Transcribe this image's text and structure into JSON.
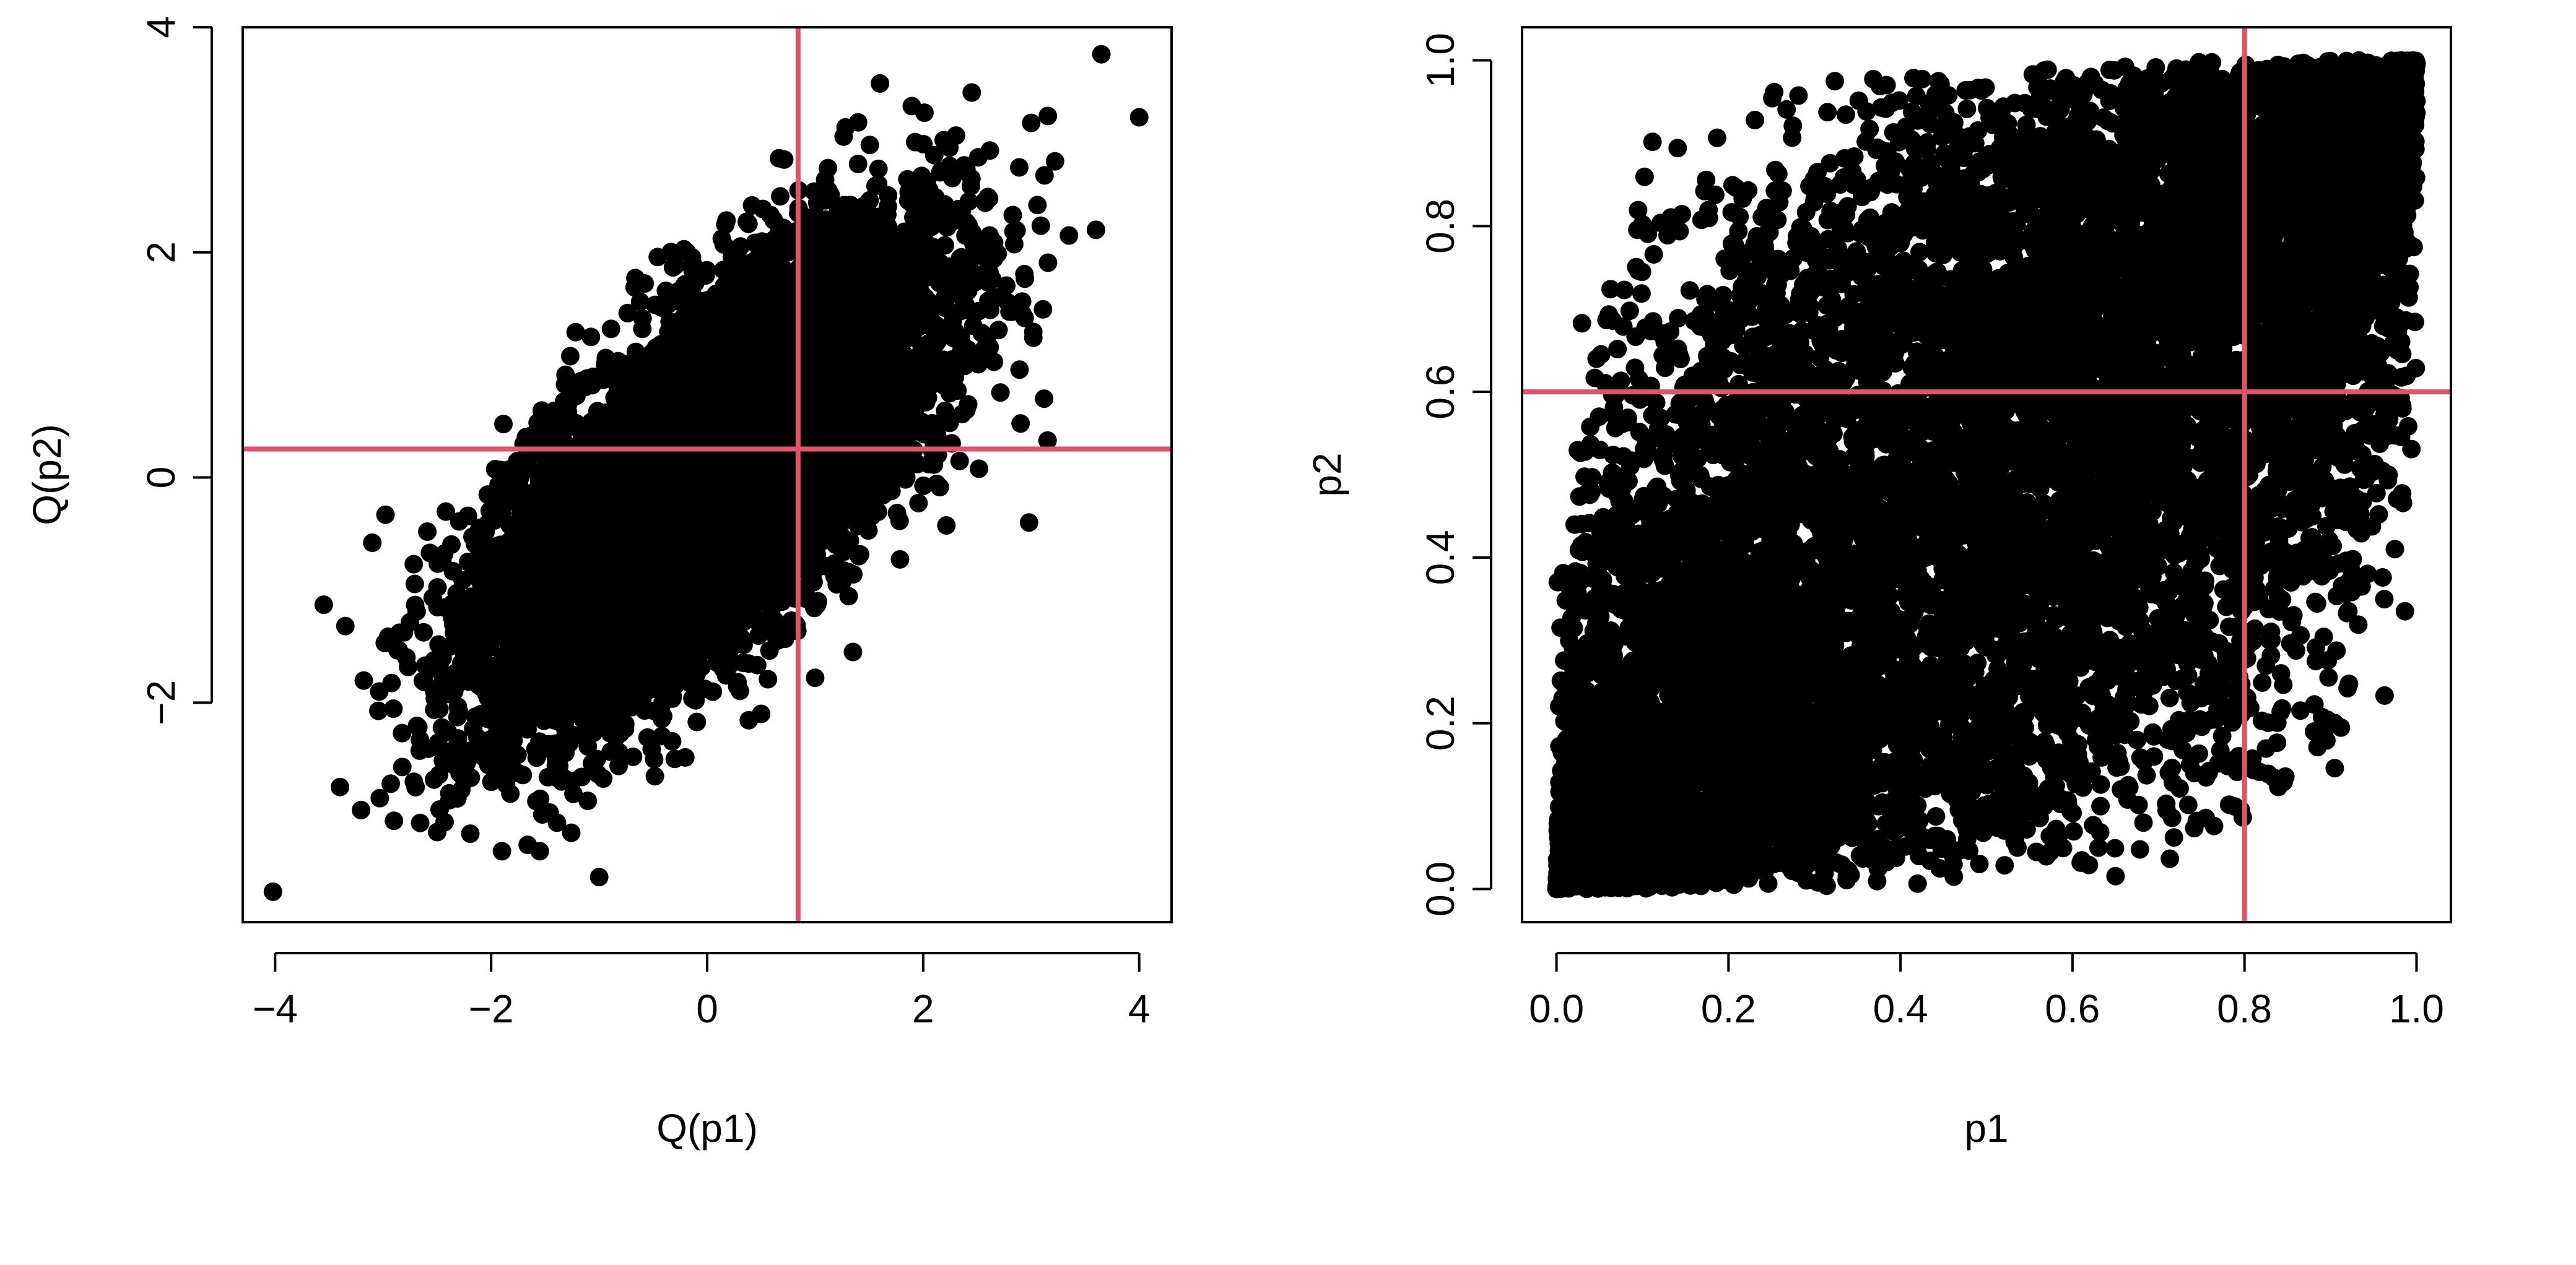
{
  "colors": {
    "points": "#000000",
    "ref_line": "#DF536B",
    "frame": "#000000",
    "background": "#ffffff"
  },
  "chart_data": [
    {
      "type": "scatter",
      "title": "",
      "xlabel": "Q(p1)",
      "ylabel": "Q(p2)",
      "xlim": [
        -4.3,
        4.3
      ],
      "ylim": [
        -3.95,
        4.0
      ],
      "xticks": [
        -4,
        -2,
        0,
        2,
        4
      ],
      "xtick_labels": [
        "−4",
        "−2",
        "0",
        "2",
        "4"
      ],
      "yticks": [
        -2,
        0,
        2,
        4
      ],
      "ytick_labels": [
        "−2",
        "0",
        "2",
        "4"
      ],
      "grid": false,
      "ref_lines": {
        "vertical_x": 0.8416,
        "horizontal_y": 0.2533,
        "color": "#DF536B"
      },
      "series": [
        {
          "distribution": "bivariate normal",
          "n_points": 10000,
          "correlation": 0.7,
          "outliers": [
            [
              -4.02,
              -3.68
            ],
            [
              -3.55,
              -1.13
            ],
            [
              -3.35,
              -1.32
            ],
            [
              -3.4,
              -2.75
            ],
            [
              -3.1,
              -0.58
            ],
            [
              -2.9,
              -3.05
            ],
            [
              -2.5,
              -3.15
            ],
            [
              -1.9,
              -3.32
            ],
            [
              -1.55,
              -3.32
            ],
            [
              -1.0,
              -3.55
            ],
            [
              -0.3,
              -2.5
            ],
            [
              0.5,
              -2.1
            ],
            [
              1.0,
              -1.78
            ],
            [
              1.35,
              -1.55
            ],
            [
              2.98,
              -0.4
            ],
            [
              3.12,
              0.7
            ],
            [
              2.45,
              3.42
            ],
            [
              1.6,
              3.5
            ],
            [
              3.0,
              3.15
            ],
            [
              3.65,
              3.76
            ],
            [
              4.0,
              3.2
            ],
            [
              3.35,
              2.15
            ],
            [
              3.6,
              2.2
            ]
          ]
        }
      ]
    },
    {
      "type": "scatter",
      "title": "",
      "xlabel": "p1",
      "ylabel": "p2",
      "xlim": [
        -0.04,
        1.04
      ],
      "ylim": [
        -0.04,
        1.04
      ],
      "xticks": [
        0.0,
        0.2,
        0.4,
        0.6,
        0.8,
        1.0
      ],
      "xtick_labels": [
        "0.0",
        "0.2",
        "0.4",
        "0.6",
        "0.8",
        "1.0"
      ],
      "yticks": [
        0.0,
        0.2,
        0.4,
        0.6,
        0.8,
        1.0
      ],
      "ytick_labels": [
        "0.0",
        "0.2",
        "0.4",
        "0.6",
        "0.8",
        "1.0"
      ],
      "grid": false,
      "ref_lines": {
        "vertical_x": 0.8,
        "horizontal_y": 0.6,
        "color": "#DF536B"
      },
      "series": [
        {
          "distribution": "Gaussian copula (uniform margins)",
          "n_points": 10000,
          "correlation": 0.7
        }
      ]
    }
  ]
}
